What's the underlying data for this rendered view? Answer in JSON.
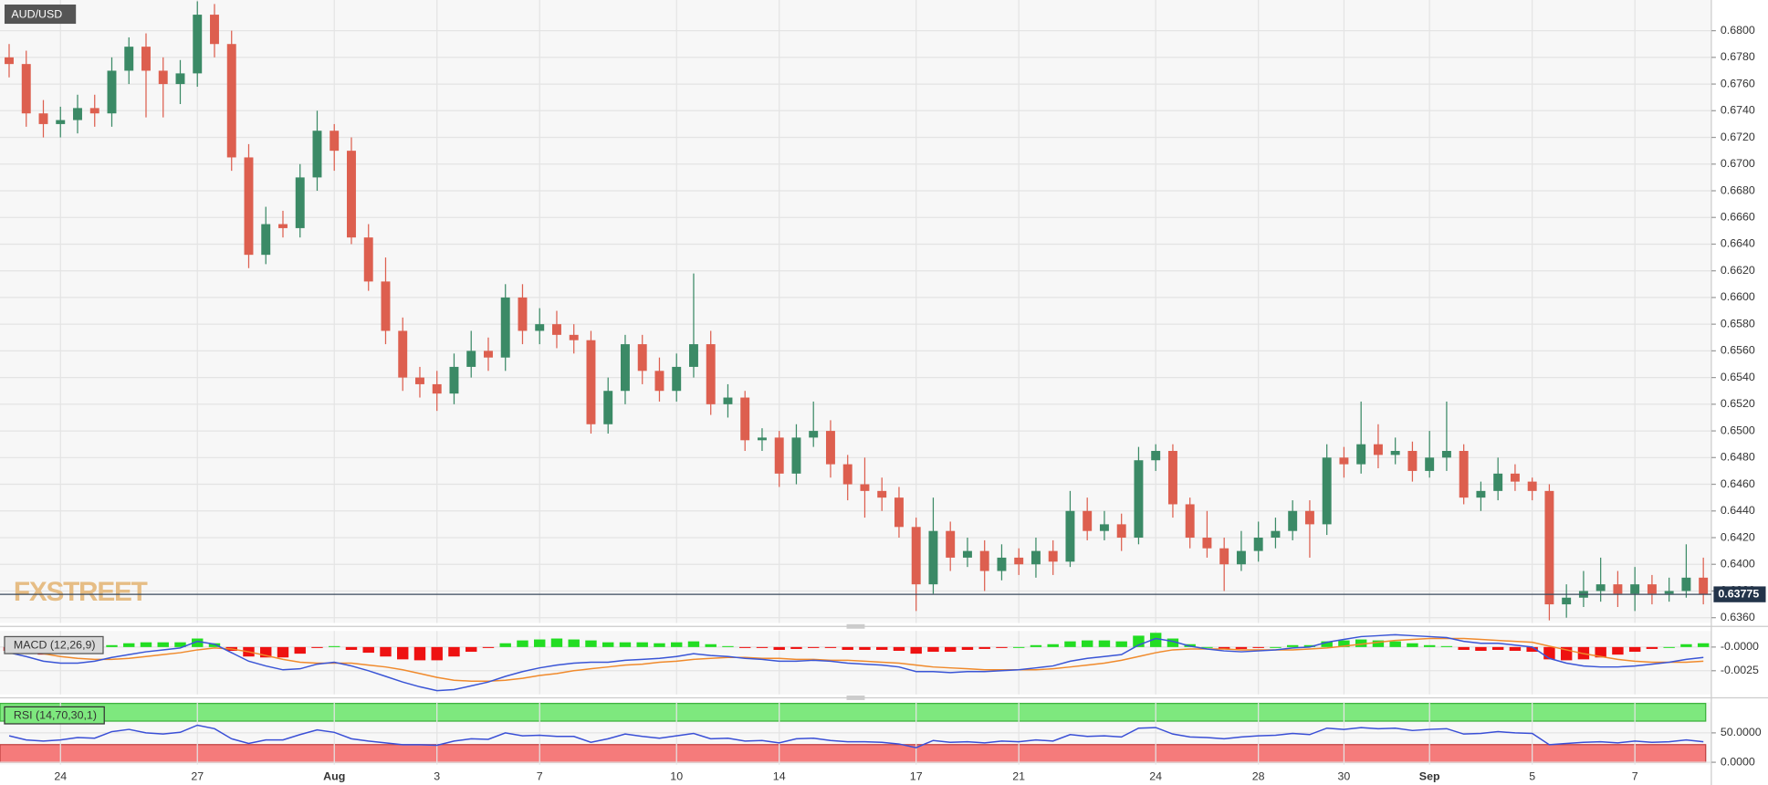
{
  "chart_data": [
    {
      "type": "candlestick",
      "title": "AUD/USD",
      "watermark": "FXSTREET",
      "categories": [
        null,
        null,
        null,
        "24",
        null,
        null,
        null,
        null,
        null,
        null,
        null,
        "27",
        null,
        null,
        null,
        null,
        null,
        null,
        null,
        "Aug",
        null,
        null,
        null,
        null,
        null,
        "3",
        null,
        null,
        null,
        null,
        null,
        "7",
        null,
        null,
        null,
        null,
        null,
        null,
        null,
        "10",
        null,
        null,
        null,
        null,
        null,
        "14",
        null,
        null,
        null,
        null,
        null,
        null,
        null,
        "17",
        null,
        null,
        null,
        null,
        null,
        "21",
        null,
        null,
        null,
        null,
        null,
        null,
        null,
        "24",
        null,
        null,
        null,
        null,
        null,
        "28",
        null,
        null,
        null,
        null,
        "30",
        null,
        null,
        null,
        null,
        "Sep",
        null,
        null,
        null,
        null,
        null,
        "5",
        null,
        null,
        null,
        null,
        null,
        "7",
        null,
        null,
        null,
        null
      ],
      "open": [
        0.678,
        0.6775,
        0.6738,
        0.673,
        0.6733,
        0.6742,
        0.6738,
        0.677,
        0.6788,
        0.677,
        0.676,
        0.6768,
        0.6812,
        0.679,
        0.6705,
        0.6632,
        0.6655,
        0.6652,
        0.669,
        0.6725,
        0.671,
        0.6645,
        0.6612,
        0.6575,
        0.654,
        0.6535,
        0.6528,
        0.6548,
        0.656,
        0.6555,
        0.66,
        0.6575,
        0.658,
        0.6572,
        0.6568,
        0.6505,
        0.653,
        0.6565,
        0.6545,
        0.653,
        0.6548,
        0.6565,
        0.652,
        0.6525,
        0.6493,
        0.6495,
        0.6468,
        0.6495,
        0.65,
        0.6475,
        0.646,
        0.6455,
        0.645,
        0.6428,
        0.6385,
        0.6425,
        0.6405,
        0.641,
        0.6395,
        0.6405,
        0.64,
        0.641,
        0.6402,
        0.644,
        0.6425,
        0.643,
        0.642,
        0.6478,
        0.6485,
        0.6445,
        0.642,
        0.6412,
        0.64,
        0.641,
        0.642,
        0.6425,
        0.644,
        0.643,
        0.648,
        0.6475,
        0.649,
        0.6482,
        0.6485,
        0.647,
        0.648,
        0.6485,
        0.645,
        0.6455,
        0.6468,
        0.6462,
        0.6455,
        0.637,
        0.6375,
        0.638,
        0.6385,
        0.6378,
        0.6385,
        0.6378,
        0.638,
        0.639
      ],
      "high": [
        0.679,
        0.6785,
        0.6748,
        0.6743,
        0.6752,
        0.6752,
        0.678,
        0.6795,
        0.6798,
        0.678,
        0.6778,
        0.6822,
        0.682,
        0.68,
        0.6715,
        0.6668,
        0.6665,
        0.67,
        0.674,
        0.673,
        0.672,
        0.6655,
        0.663,
        0.6585,
        0.6548,
        0.6545,
        0.6558,
        0.6575,
        0.657,
        0.661,
        0.661,
        0.6592,
        0.659,
        0.658,
        0.6575,
        0.654,
        0.6572,
        0.6572,
        0.6555,
        0.6558,
        0.6618,
        0.6575,
        0.6535,
        0.653,
        0.6502,
        0.65,
        0.6505,
        0.6522,
        0.6508,
        0.6482,
        0.648,
        0.6465,
        0.6458,
        0.6435,
        0.645,
        0.6432,
        0.642,
        0.6418,
        0.6415,
        0.6412,
        0.642,
        0.6418,
        0.6455,
        0.645,
        0.644,
        0.6438,
        0.6488,
        0.649,
        0.649,
        0.645,
        0.644,
        0.642,
        0.6425,
        0.6432,
        0.6435,
        0.6448,
        0.6448,
        0.649,
        0.6488,
        0.6522,
        0.6505,
        0.6495,
        0.6492,
        0.65,
        0.6522,
        0.649,
        0.6462,
        0.648,
        0.6475,
        0.6465,
        0.646,
        0.6385,
        0.6395,
        0.6405,
        0.6395,
        0.6398,
        0.6392,
        0.639,
        0.6415,
        0.6405
      ],
      "low": [
        0.6765,
        0.6728,
        0.672,
        0.672,
        0.6723,
        0.6728,
        0.6728,
        0.676,
        0.6735,
        0.6735,
        0.6745,
        0.6758,
        0.678,
        0.6695,
        0.6622,
        0.6625,
        0.6645,
        0.6645,
        0.668,
        0.6695,
        0.664,
        0.6605,
        0.6565,
        0.653,
        0.6525,
        0.6515,
        0.652,
        0.654,
        0.6545,
        0.6545,
        0.6565,
        0.6565,
        0.6562,
        0.6558,
        0.6498,
        0.6498,
        0.652,
        0.6535,
        0.6522,
        0.6522,
        0.654,
        0.6512,
        0.651,
        0.6485,
        0.6485,
        0.6458,
        0.646,
        0.6488,
        0.6465,
        0.6448,
        0.6435,
        0.644,
        0.642,
        0.6365,
        0.6378,
        0.6395,
        0.6398,
        0.638,
        0.6388,
        0.6392,
        0.639,
        0.6392,
        0.6398,
        0.6418,
        0.6418,
        0.641,
        0.6415,
        0.647,
        0.6435,
        0.6412,
        0.6405,
        0.638,
        0.6395,
        0.6402,
        0.6412,
        0.6418,
        0.6405,
        0.6422,
        0.6465,
        0.6468,
        0.6472,
        0.6475,
        0.6462,
        0.6465,
        0.647,
        0.6445,
        0.644,
        0.6448,
        0.6455,
        0.6448,
        0.6358,
        0.636,
        0.6368,
        0.6372,
        0.6368,
        0.6365,
        0.637,
        0.6372,
        0.6375,
        0.637
      ],
      "close": [
        0.6775,
        0.6738,
        0.673,
        0.6733,
        0.6742,
        0.6738,
        0.677,
        0.6788,
        0.677,
        0.676,
        0.6768,
        0.6812,
        0.679,
        0.6705,
        0.6632,
        0.6655,
        0.6652,
        0.669,
        0.6725,
        0.671,
        0.6645,
        0.6612,
        0.6575,
        0.654,
        0.6535,
        0.6528,
        0.6548,
        0.656,
        0.6555,
        0.66,
        0.6575,
        0.658,
        0.6572,
        0.6568,
        0.6505,
        0.653,
        0.6565,
        0.6545,
        0.653,
        0.6548,
        0.6565,
        0.652,
        0.6525,
        0.6493,
        0.6495,
        0.6468,
        0.6495,
        0.65,
        0.6475,
        0.646,
        0.6455,
        0.645,
        0.6428,
        0.6385,
        0.6425,
        0.6405,
        0.641,
        0.6395,
        0.6405,
        0.64,
        0.641,
        0.6402,
        0.644,
        0.6425,
        0.643,
        0.642,
        0.6478,
        0.6485,
        0.6445,
        0.642,
        0.6412,
        0.64,
        0.641,
        0.642,
        0.6425,
        0.644,
        0.643,
        0.648,
        0.6475,
        0.649,
        0.6482,
        0.6485,
        0.647,
        0.648,
        0.6485,
        0.645,
        0.6455,
        0.6468,
        0.6462,
        0.6455,
        0.637,
        0.6375,
        0.638,
        0.6385,
        0.6378,
        0.6385,
        0.6378,
        0.638,
        0.639,
        0.63775
      ],
      "up_color": "#3b8a66",
      "down_color": "#dd5f4f",
      "last_price": 0.63775,
      "ylim": [
        0.6356,
        0.6823
      ],
      "yticks": [
        {
          "value": 0.636,
          "label": "0.6360"
        },
        {
          "value": 0.638,
          "label": "0.6380"
        },
        {
          "value": 0.64,
          "label": "0.6400"
        },
        {
          "value": 0.642,
          "label": "0.6420"
        },
        {
          "value": 0.644,
          "label": "0.6440"
        },
        {
          "value": 0.646,
          "label": "0.6460"
        },
        {
          "value": 0.648,
          "label": "0.6480"
        },
        {
          "value": 0.65,
          "label": "0.6500"
        },
        {
          "value": 0.652,
          "label": "0.6520"
        },
        {
          "value": 0.654,
          "label": "0.6540"
        },
        {
          "value": 0.656,
          "label": "0.6560"
        },
        {
          "value": 0.658,
          "label": "0.6580"
        },
        {
          "value": 0.66,
          "label": "0.6600"
        },
        {
          "value": 0.662,
          "label": "0.6620"
        },
        {
          "value": 0.664,
          "label": "0.6640"
        },
        {
          "value": 0.666,
          "label": "0.6660"
        },
        {
          "value": 0.668,
          "label": "0.6680"
        },
        {
          "value": 0.67,
          "label": "0.6700"
        },
        {
          "value": 0.672,
          "label": "0.6720"
        },
        {
          "value": 0.674,
          "label": "0.6740"
        },
        {
          "value": 0.676,
          "label": "0.6760"
        },
        {
          "value": 0.678,
          "label": "0.6780"
        },
        {
          "value": 0.68,
          "label": "0.6800"
        }
      ],
      "grid": true
    },
    {
      "type": "macd",
      "title": "MACD (12,26,9)",
      "macd": [
        -0.0006,
        -0.001,
        -0.0015,
        -0.0017,
        -0.0017,
        -0.0015,
        -0.0011,
        -0.0008,
        -0.0005,
        -0.0003,
        -0.0001,
        0.0006,
        0.0003,
        -0.0006,
        -0.0015,
        -0.002,
        -0.0024,
        -0.0023,
        -0.0018,
        -0.0016,
        -0.002,
        -0.0025,
        -0.0031,
        -0.0037,
        -0.0042,
        -0.0046,
        -0.0045,
        -0.0041,
        -0.0037,
        -0.0031,
        -0.0026,
        -0.0022,
        -0.0019,
        -0.0017,
        -0.0016,
        -0.0016,
        -0.0014,
        -0.0013,
        -0.0012,
        -0.001,
        -0.0007,
        -0.0009,
        -0.001,
        -0.0012,
        -0.0013,
        -0.0015,
        -0.0015,
        -0.0014,
        -0.0015,
        -0.0017,
        -0.0018,
        -0.0019,
        -0.0021,
        -0.0026,
        -0.0026,
        -0.0027,
        -0.0026,
        -0.0026,
        -0.0025,
        -0.0024,
        -0.0022,
        -0.002,
        -0.0015,
        -0.0012,
        -0.001,
        -0.0008,
        0.0002,
        0.0009,
        0.0006,
        0.0001,
        -0.0002,
        -0.0004,
        -0.0005,
        -0.0004,
        -0.0003,
        -0.0001,
        0.0,
        0.0005,
        0.0008,
        0.0011,
        0.0012,
        0.0013,
        0.0012,
        0.0011,
        0.001,
        0.0006,
        0.0004,
        0.0004,
        0.0002,
        0.0,
        -0.0012,
        -0.0017,
        -0.002,
        -0.0021,
        -0.0021,
        -0.002,
        -0.0018,
        -0.0016,
        -0.0013,
        -0.0011
      ],
      "signal": [
        -0.0002,
        -0.0004,
        -0.0007,
        -0.001,
        -0.0012,
        -0.0013,
        -0.0013,
        -0.0012,
        -0.001,
        -0.0008,
        -0.0006,
        -0.0003,
        -0.0001,
        -0.0002,
        -0.0005,
        -0.0009,
        -0.0013,
        -0.0016,
        -0.0017,
        -0.0017,
        -0.0017,
        -0.0019,
        -0.0021,
        -0.0024,
        -0.0028,
        -0.0032,
        -0.0035,
        -0.0036,
        -0.0036,
        -0.0035,
        -0.0033,
        -0.003,
        -0.0028,
        -0.0025,
        -0.0023,
        -0.0021,
        -0.0019,
        -0.0018,
        -0.0016,
        -0.0015,
        -0.0013,
        -0.0012,
        -0.0011,
        -0.0011,
        -0.0012,
        -0.0012,
        -0.0013,
        -0.0013,
        -0.0014,
        -0.0014,
        -0.0015,
        -0.0016,
        -0.0017,
        -0.0019,
        -0.0021,
        -0.0022,
        -0.0023,
        -0.0024,
        -0.0024,
        -0.0024,
        -0.0024,
        -0.0023,
        -0.0021,
        -0.0019,
        -0.0017,
        -0.0014,
        -0.001,
        -0.0006,
        -0.0003,
        -0.0002,
        -0.0002,
        -0.0002,
        -0.0003,
        -0.0003,
        -0.0003,
        -0.0003,
        -0.0002,
        -0.0001,
        0.0001,
        0.0003,
        0.0005,
        0.0007,
        0.0008,
        0.0009,
        0.0009,
        0.0009,
        0.0008,
        0.0007,
        0.0006,
        0.0005,
        0.0001,
        -0.0003,
        -0.0007,
        -0.001,
        -0.0013,
        -0.0015,
        -0.0016,
        -0.0016,
        -0.0016,
        -0.0015
      ],
      "histogram": [
        -0.0004,
        -0.0006,
        -0.0008,
        -0.0007,
        -0.0005,
        -0.0002,
        0.0002,
        0.0004,
        0.0005,
        0.0005,
        0.0005,
        0.0009,
        0.0004,
        -0.0004,
        -0.001,
        -0.0011,
        -0.0011,
        -0.0007,
        -0.0001,
        0.0001,
        -0.0003,
        -0.0006,
        -0.001,
        -0.0013,
        -0.0014,
        -0.0014,
        -0.001,
        -0.0005,
        -0.0001,
        0.0004,
        0.0007,
        0.0008,
        0.0009,
        0.0008,
        0.0007,
        0.0005,
        0.0005,
        0.0005,
        0.0004,
        0.0005,
        0.0006,
        0.0003,
        0.0001,
        -0.0001,
        -0.0001,
        -0.0003,
        -0.0002,
        -0.0001,
        -0.0001,
        -0.0003,
        -0.0003,
        -0.0003,
        -0.0004,
        -0.0007,
        -0.0005,
        -0.0005,
        -0.0003,
        -0.0002,
        -0.0001,
        0.0,
        0.0002,
        0.0003,
        0.0006,
        0.0007,
        0.0007,
        0.0006,
        0.0012,
        0.0015,
        0.0009,
        0.0003,
        0.0,
        -0.0002,
        -0.0002,
        -0.0001,
        0.0,
        0.0002,
        0.0002,
        0.0006,
        0.0007,
        0.0008,
        0.0007,
        0.0006,
        0.0004,
        0.0002,
        0.0001,
        -0.0003,
        -0.0004,
        -0.0003,
        -0.0004,
        -0.0005,
        -0.0013,
        -0.0014,
        -0.0013,
        -0.0011,
        -0.0008,
        -0.0005,
        -0.0002,
        0.0,
        0.0003,
        0.0004
      ],
      "macd_color": "#3a55d6",
      "signal_color": "#f08a2c",
      "up_color": "#22dd22",
      "down_color": "#ee1111",
      "ylim": [
        -0.005,
        0.0017
      ],
      "yticks": [
        {
          "value": -0.0025,
          "label": "-0.0025"
        },
        {
          "value": 0,
          "label": "-0.0000"
        }
      ]
    },
    {
      "type": "rsi",
      "title": "RSI (14,70,30,1)",
      "values": [
        45,
        38,
        36,
        38,
        42,
        41,
        52,
        56,
        50,
        48,
        51,
        63,
        57,
        40,
        32,
        38,
        38,
        47,
        55,
        51,
        40,
        36,
        33,
        30,
        30,
        29,
        36,
        40,
        39,
        50,
        45,
        46,
        44,
        44,
        34,
        40,
        48,
        44,
        41,
        45,
        49,
        40,
        41,
        36,
        37,
        33,
        40,
        41,
        37,
        35,
        35,
        34,
        31,
        25,
        37,
        34,
        35,
        33,
        36,
        35,
        38,
        36,
        47,
        44,
        45,
        43,
        58,
        59,
        48,
        43,
        42,
        40,
        43,
        45,
        46,
        49,
        47,
        58,
        56,
        59,
        57,
        58,
        54,
        56,
        57,
        48,
        49,
        52,
        50,
        49,
        30,
        32,
        34,
        35,
        33,
        36,
        34,
        35,
        38,
        35
      ],
      "color": "#3a4fd6",
      "overbought": 70,
      "oversold": 30,
      "overbought_color": "#7ee87e",
      "oversold_color": "#f57b7b",
      "ylim": [
        -4,
        102
      ],
      "yticks": [
        {
          "value": 0,
          "label": "0.0000"
        },
        {
          "value": 50,
          "label": "50.0000"
        }
      ]
    }
  ]
}
